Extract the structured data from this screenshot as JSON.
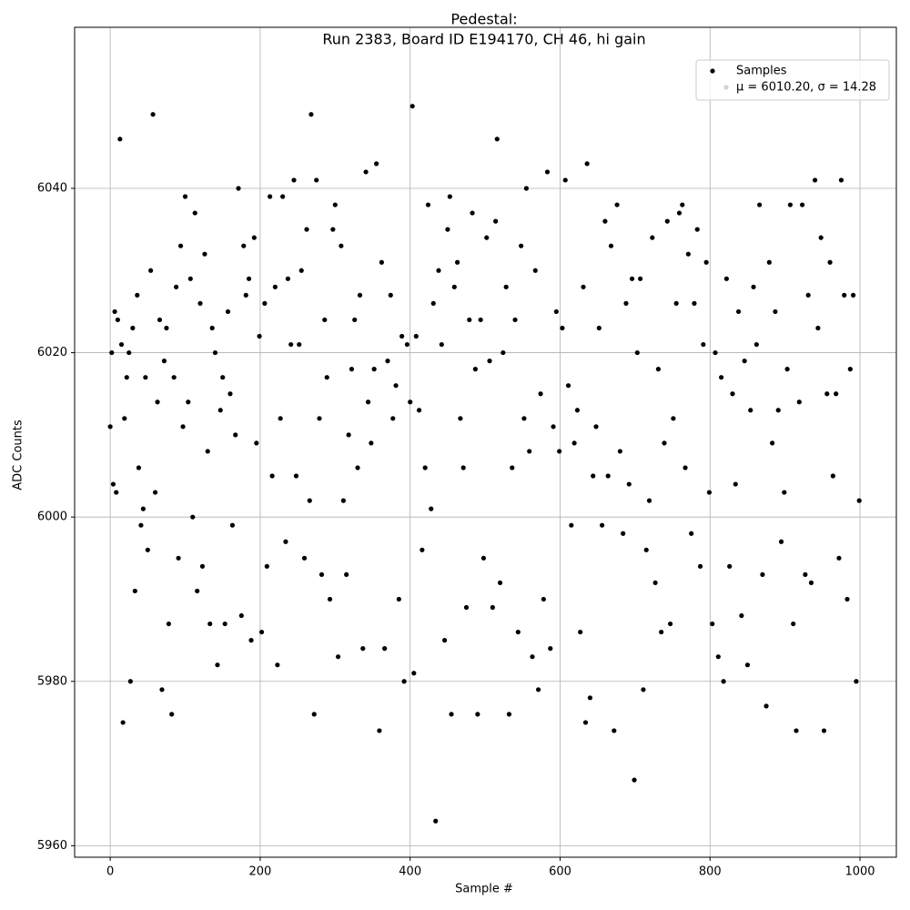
{
  "chart_data": {
    "type": "scatter",
    "title": "Pedestal:",
    "subtitle": "Run 2383, Board ID E194170, CH 46, hi gain",
    "x_label": "Sample #",
    "y_label": "ADC Counts",
    "xlim": [
      -47.5,
      1048.5
    ],
    "ylim": [
      5958.6,
      6059.6
    ],
    "xticks": [
      0,
      200,
      400,
      600,
      800,
      1000
    ],
    "yticks": [
      5960,
      5980,
      6000,
      6020,
      6040
    ],
    "grid": true,
    "legend": "upper right",
    "annotations": [
      "μ = 6010.20, σ = 14.28"
    ],
    "x": [
      0,
      2,
      4,
      6,
      8,
      10,
      13,
      15,
      17,
      19,
      22,
      25,
      27,
      30,
      33,
      36,
      38,
      41,
      44,
      47,
      50,
      54,
      57,
      60,
      63,
      66,
      69,
      72,
      75,
      78,
      82,
      85,
      88,
      91,
      94,
      97,
      100,
      104,
      107,
      110,
      113,
      116,
      120,
      123,
      126,
      130,
      133,
      136,
      140,
      143,
      147,
      150,
      153,
      157,
      160,
      163,
      167,
      171,
      175,
      178,
      181,
      185,
      188,
      192,
      195,
      199,
      202,
      206,
      209,
      213,
      216,
      220,
      223,
      227,
      230,
      234,
      237,
      241,
      245,
      248,
      252,
      255,
      259,
      262,
      266,
      268,
      272,
      275,
      279,
      282,
      286,
      289,
      293,
      297,
      300,
      304,
      308,
      311,
      315,
      318,
      322,
      326,
      330,
      333,
      337,
      341,
      344,
      348,
      352,
      355,
      359,
      362,
      366,
      370,
      374,
      377,
      381,
      385,
      389,
      392,
      396,
      400,
      403,
      405,
      408,
      412,
      416,
      420,
      424,
      428,
      431,
      434,
      438,
      442,
      446,
      450,
      453,
      455,
      459,
      463,
      467,
      471,
      475,
      479,
      483,
      487,
      490,
      494,
      498,
      502,
      506,
      510,
      514,
      516,
      520,
      524,
      528,
      532,
      536,
      540,
      544,
      548,
      552,
      555,
      559,
      563,
      567,
      571,
      574,
      578,
      583,
      587,
      591,
      595,
      599,
      603,
      607,
      611,
      615,
      619,
      623,
      627,
      631,
      634,
      636,
      640,
      644,
      648,
      652,
      656,
      660,
      664,
      668,
      672,
      676,
      680,
      684,
      688,
      692,
      696,
      699,
      703,
      707,
      711,
      715,
      719,
      723,
      727,
      731,
      735,
      739,
      743,
      747,
      751,
      755,
      759,
      763,
      767,
      771,
      775,
      779,
      783,
      787,
      791,
      795,
      799,
      803,
      807,
      811,
      815,
      818,
      822,
      826,
      830,
      834,
      838,
      842,
      846,
      850,
      854,
      858,
      862,
      866,
      870,
      875,
      879,
      883,
      887,
      891,
      895,
      899,
      903,
      907,
      911,
      915,
      919,
      923,
      927,
      931,
      935,
      940,
      944,
      948,
      952,
      956,
      960,
      964,
      968,
      972,
      975,
      979,
      983,
      987,
      991,
      995,
      999
    ],
    "series": [
      {
        "name": "Samples",
        "color": "#000000",
        "values": [
          6011,
          6020,
          6004,
          6025,
          6003,
          6024,
          6046,
          6021,
          5975,
          6012,
          6017,
          6020,
          5980,
          6023,
          5991,
          6027,
          6006,
          5999,
          6001,
          6017,
          5996,
          6030,
          6049,
          6003,
          6014,
          6024,
          5979,
          6019,
          6023,
          5987,
          5976,
          6017,
          6028,
          5995,
          6033,
          6011,
          6039,
          6014,
          6029,
          6000,
          6037,
          5991,
          6026,
          5994,
          6032,
          6008,
          5987,
          6023,
          6020,
          5982,
          6013,
          6017,
          5987,
          6025,
          6015,
          5999,
          6010,
          6040,
          5988,
          6033,
          6027,
          6029,
          5985,
          6034,
          6009,
          6022,
          5986,
          6026,
          5994,
          6039,
          6005,
          6028,
          5982,
          6012,
          6039,
          5997,
          6029,
          6021,
          6041,
          6005,
          6021,
          6030,
          5995,
          6035,
          6002,
          6049,
          5976,
          6041,
          6012,
          5993,
          6024,
          6017,
          5990,
          6035,
          6038,
          5983,
          6033,
          6002,
          5993,
          6010,
          6018,
          6024,
          6006,
          6027,
          5984,
          6042,
          6014,
          6009,
          6018,
          6043,
          5974,
          6031,
          5984,
          6019,
          6027,
          6012,
          6016,
          5990,
          6022,
          5980,
          6021,
          6014,
          6050,
          5981,
          6022,
          6013,
          5996,
          6006,
          6038,
          6001,
          6026,
          5963,
          6030,
          6021,
          5985,
          6035,
          6039,
          5976,
          6028,
          6031,
          6012,
          6006,
          5989,
          6024,
          6037,
          6018,
          5976,
          6024,
          5995,
          6034,
          6019,
          5989,
          6036,
          6046,
          5992,
          6020,
          6028,
          5976,
          6006,
          6024,
          5986,
          6033,
          6012,
          6040,
          6008,
          5983,
          6030,
          5979,
          6015,
          5990,
          6042,
          5984,
          6011,
          6025,
          6008,
          6023,
          6041,
          6016,
          5999,
          6009,
          6013,
          5986,
          6028,
          5975,
          6043,
          5978,
          6005,
          6011,
          6023,
          5999,
          6036,
          6005,
          6033,
          5974,
          6038,
          6008,
          5998,
          6026,
          6004,
          6029,
          5968,
          6020,
          6029,
          5979,
          5996,
          6002,
          6034,
          5992,
          6018,
          5986,
          6009,
          6036,
          5987,
          6012,
          6026,
          6037,
          6038,
          6006,
          6032,
          5998,
          6026,
          6035,
          5994,
          6021,
          6031,
          6003,
          5987,
          6020,
          5983,
          6017,
          5980,
          6029,
          5994,
          6015,
          6004,
          6025,
          5988,
          6019,
          5982,
          6013,
          6028,
          6021,
          6038,
          5993,
          5977,
          6031,
          6009,
          6025,
          6013,
          5997,
          6003,
          6018,
          6038,
          5987,
          5974,
          6014,
          6038,
          5993,
          6027,
          5992,
          6041,
          6023,
          6034,
          5974,
          6015,
          6031,
          6005,
          6015,
          5995,
          6041,
          6027,
          5990,
          6018,
          6027,
          5980,
          6002
        ]
      }
    ]
  }
}
